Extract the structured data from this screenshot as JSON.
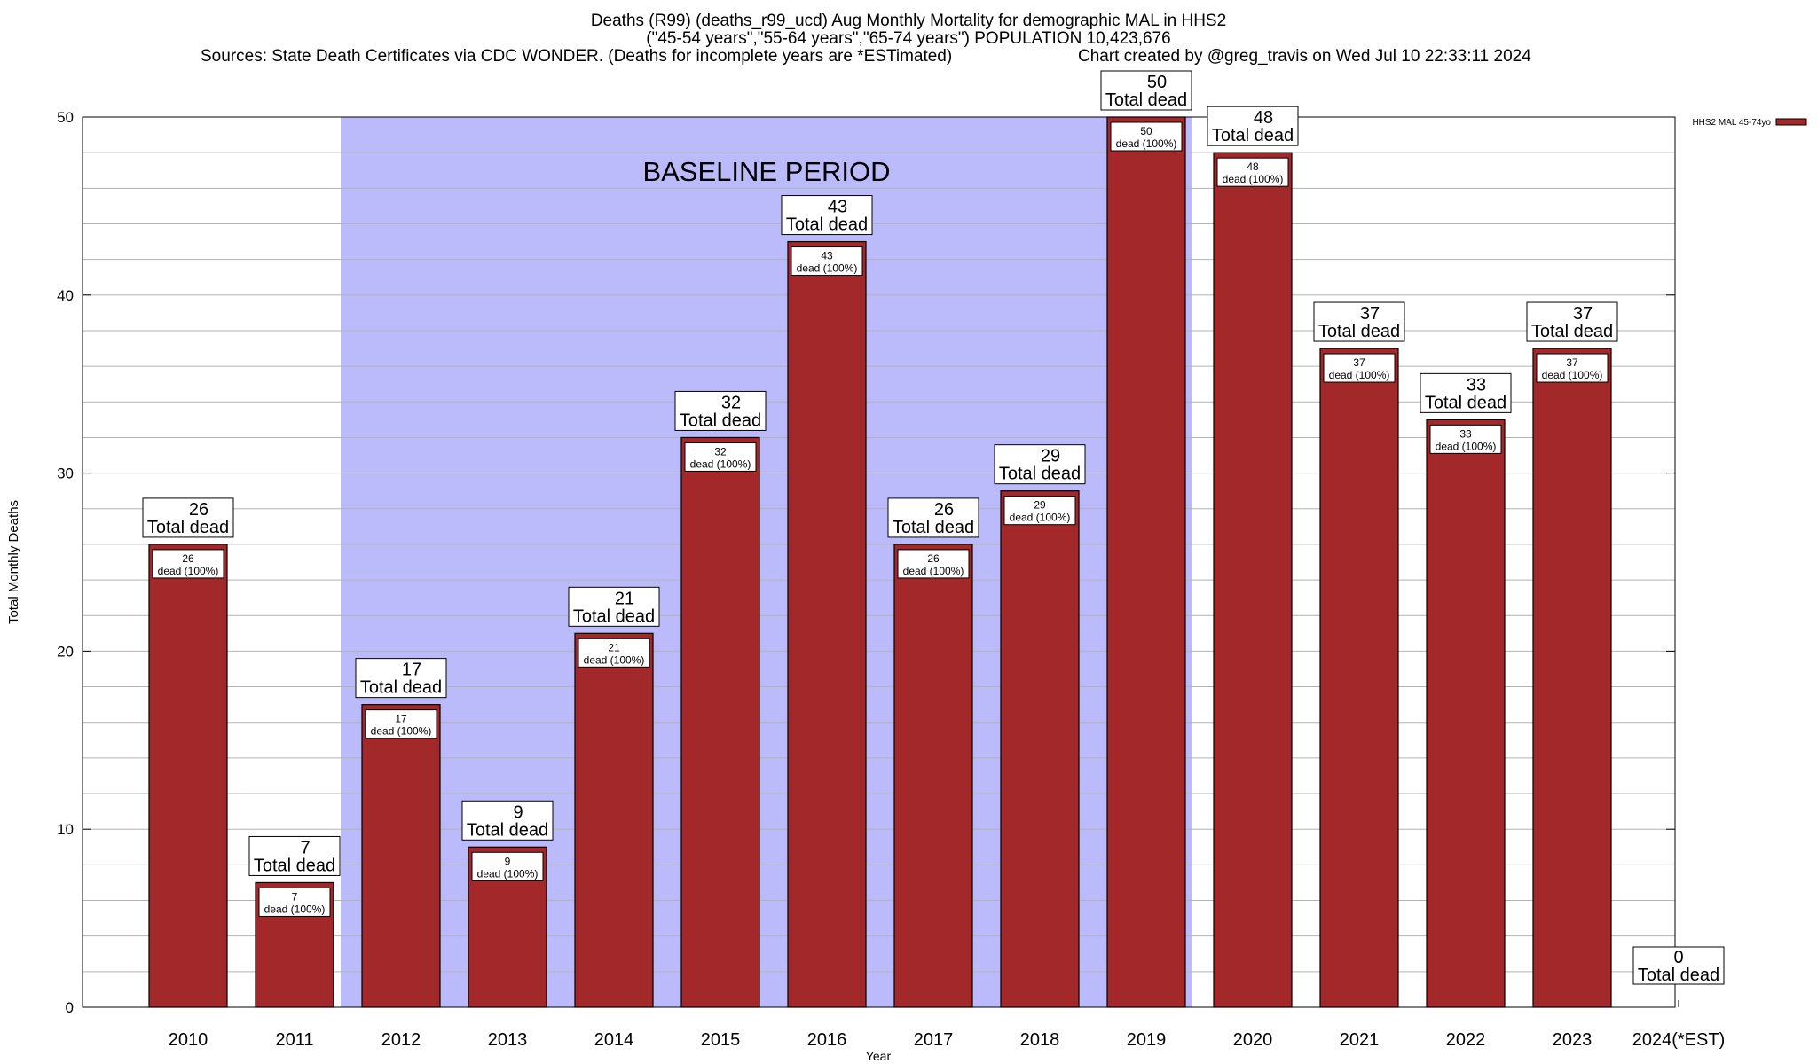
{
  "header": {
    "line1": "Deaths (R99) (deaths_r99_ucd) Aug Monthly Mortality for demographic MAL in HHS2",
    "line2": "(\"45-54 years\",\"55-64 years\",\"65-74 years\") POPULATION 10,423,676",
    "line3_left": "Sources: State Death Certificates via CDC WONDER. (Deaths for incomplete years are *ESTimated)",
    "line3_right": "Chart created by @greg_travis on Wed Jul 10 22:33:11 2024"
  },
  "chart_data": {
    "type": "bar",
    "title": "Deaths (R99) (deaths_r99_ucd) Aug Monthly Mortality for demographic MAL in HHS2",
    "xlabel": "Year",
    "ylabel": "Total Monthly Deaths",
    "ylim": [
      0,
      50
    ],
    "yticks": [
      0,
      10,
      20,
      30,
      40,
      50
    ],
    "minor_grid_step": 2,
    "grid": true,
    "categories": [
      "2010",
      "2011",
      "2012",
      "2013",
      "2014",
      "2015",
      "2016",
      "2017",
      "2018",
      "2019",
      "2020",
      "2021",
      "2022",
      "2023",
      "2024(*EST)"
    ],
    "series": [
      {
        "name": "HHS2 MAL 45-74yo",
        "color": "#a3282a",
        "values": [
          26,
          7,
          17,
          9,
          21,
          32,
          43,
          26,
          29,
          50,
          48,
          37,
          33,
          37,
          0
        ]
      }
    ],
    "total_label_suffix": "Total dead",
    "inner_label_suffix": "dead (100%)",
    "baseline": {
      "label": "BASELINE PERIOD",
      "from": "2012",
      "to": "2019",
      "color": "#bbbbfb"
    },
    "legend": {
      "entry": "HHS2 MAL 45-74yo",
      "placement": "top-right outside"
    }
  }
}
